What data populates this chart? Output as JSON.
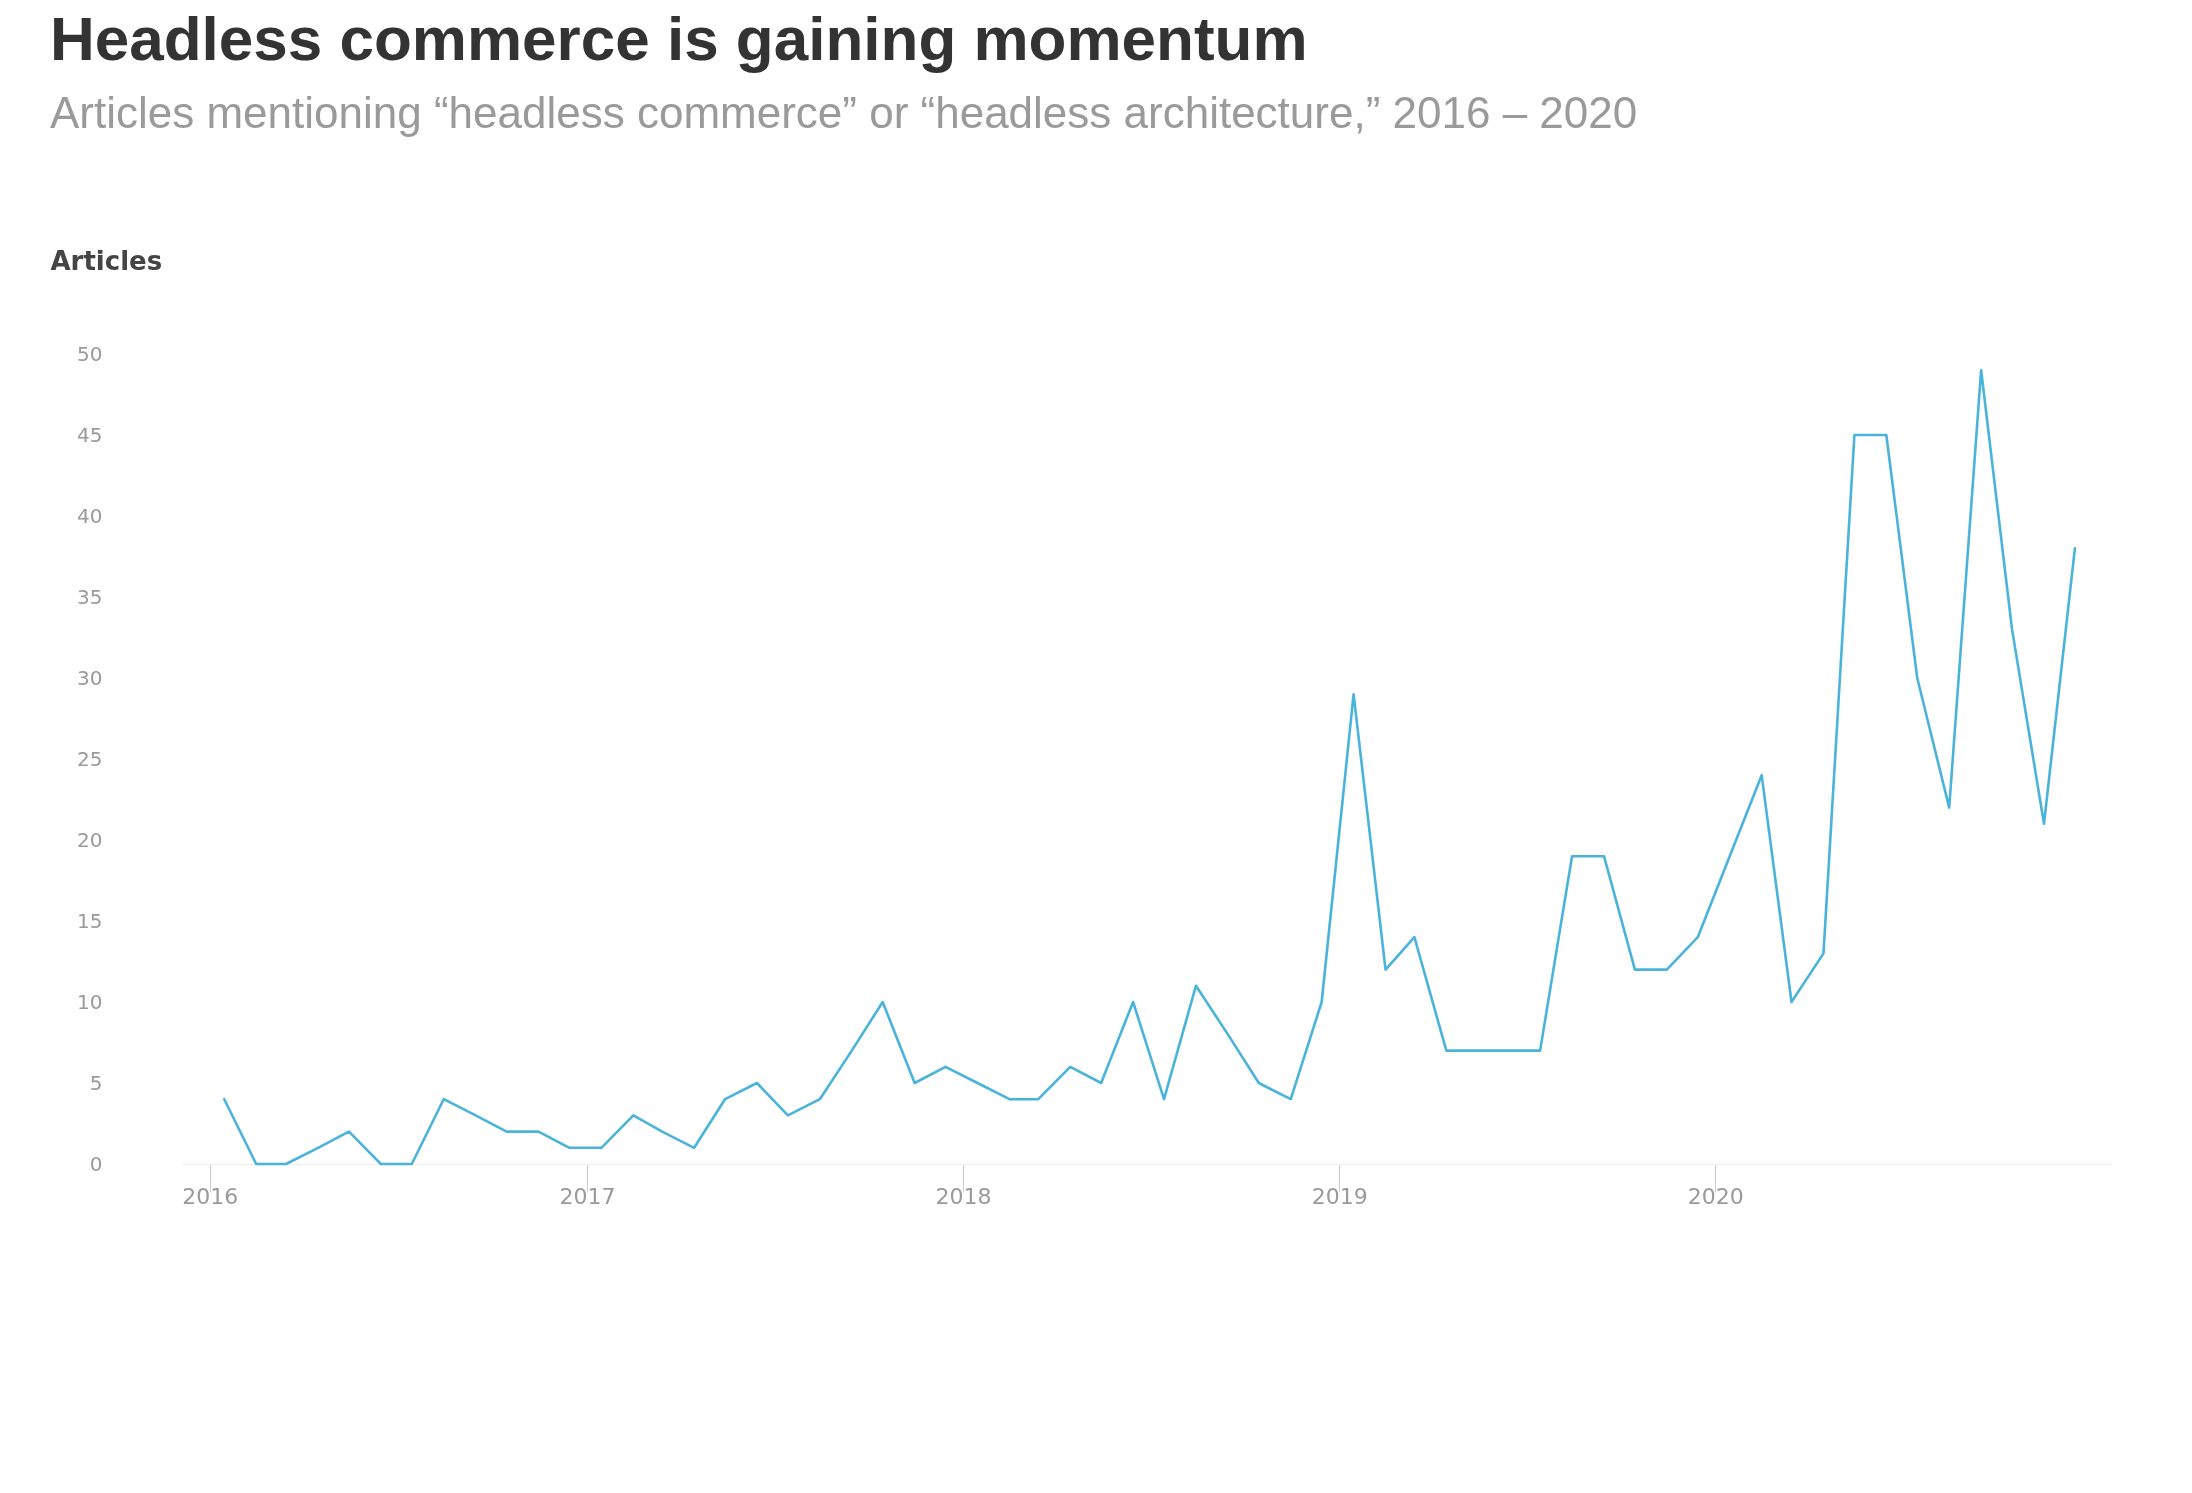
{
  "chart_data": {
    "type": "line",
    "title": "Headless commerce is gaining momentum",
    "subtitle": "Articles mentioning “headless commerce” or “headless architecture,” 2016 – 2020",
    "ylabel": "Articles",
    "x": [
      "2016-01-15",
      "2016-02-15",
      "2016-03-15",
      "2016-04-15",
      "2016-05-15",
      "2016-06-15",
      "2016-07-15",
      "2016-08-15",
      "2016-09-15",
      "2016-10-15",
      "2016-11-15",
      "2016-12-15",
      "2017-01-15",
      "2017-02-15",
      "2017-03-15",
      "2017-04-15",
      "2017-05-15",
      "2017-06-15",
      "2017-07-15",
      "2017-08-15",
      "2017-09-15",
      "2017-10-15",
      "2017-11-15",
      "2017-12-15",
      "2018-01-15",
      "2018-02-15",
      "2018-03-15",
      "2018-04-15",
      "2018-05-15",
      "2018-06-15",
      "2018-07-15",
      "2018-08-15",
      "2018-09-15",
      "2018-10-15",
      "2018-11-15",
      "2018-12-15",
      "2019-01-15",
      "2019-02-15",
      "2019-03-15",
      "2019-04-15",
      "2019-05-15",
      "2019-06-15",
      "2019-07-15",
      "2019-08-15",
      "2019-09-15",
      "2019-10-15",
      "2019-11-15",
      "2019-12-15",
      "2020-01-15",
      "2020-02-15",
      "2020-03-15",
      "2020-04-15",
      "2020-05-15",
      "2020-06-15",
      "2020-07-15",
      "2020-08-15",
      "2020-09-15",
      "2020-10-15",
      "2020-11-15",
      "2020-12-15"
    ],
    "series": [
      {
        "color": "#4ab3da",
        "values": [
          4,
          0,
          0,
          1,
          2,
          0,
          0,
          4,
          3,
          2,
          2,
          1,
          1,
          3,
          2,
          1,
          4,
          5,
          3,
          4,
          7,
          10,
          5,
          6,
          5,
          4,
          4,
          6,
          5,
          10,
          4,
          11,
          8,
          5,
          4,
          10,
          29,
          12,
          14,
          7,
          7,
          7,
          7,
          19,
          19,
          12,
          12,
          14,
          19,
          24,
          10,
          13,
          45,
          45,
          30,
          22,
          49,
          33,
          21,
          38
        ]
      }
    ],
    "xlim": [
      "2015-12-05",
      "2021-01-20"
    ],
    "xticks": [
      {
        "value": "2016",
        "label": "2016"
      },
      {
        "value": "2017",
        "label": "2017"
      },
      {
        "value": "2018",
        "label": "2018"
      },
      {
        "value": "2019",
        "label": "2019"
      },
      {
        "value": "2020",
        "label": "2020"
      }
    ],
    "ylim": [
      0,
      50
    ],
    "yticks": [
      0,
      5,
      10,
      15,
      20,
      25,
      30,
      35,
      40,
      45,
      50
    ],
    "grid": false,
    "marker": "none",
    "line_style": "solid"
  }
}
